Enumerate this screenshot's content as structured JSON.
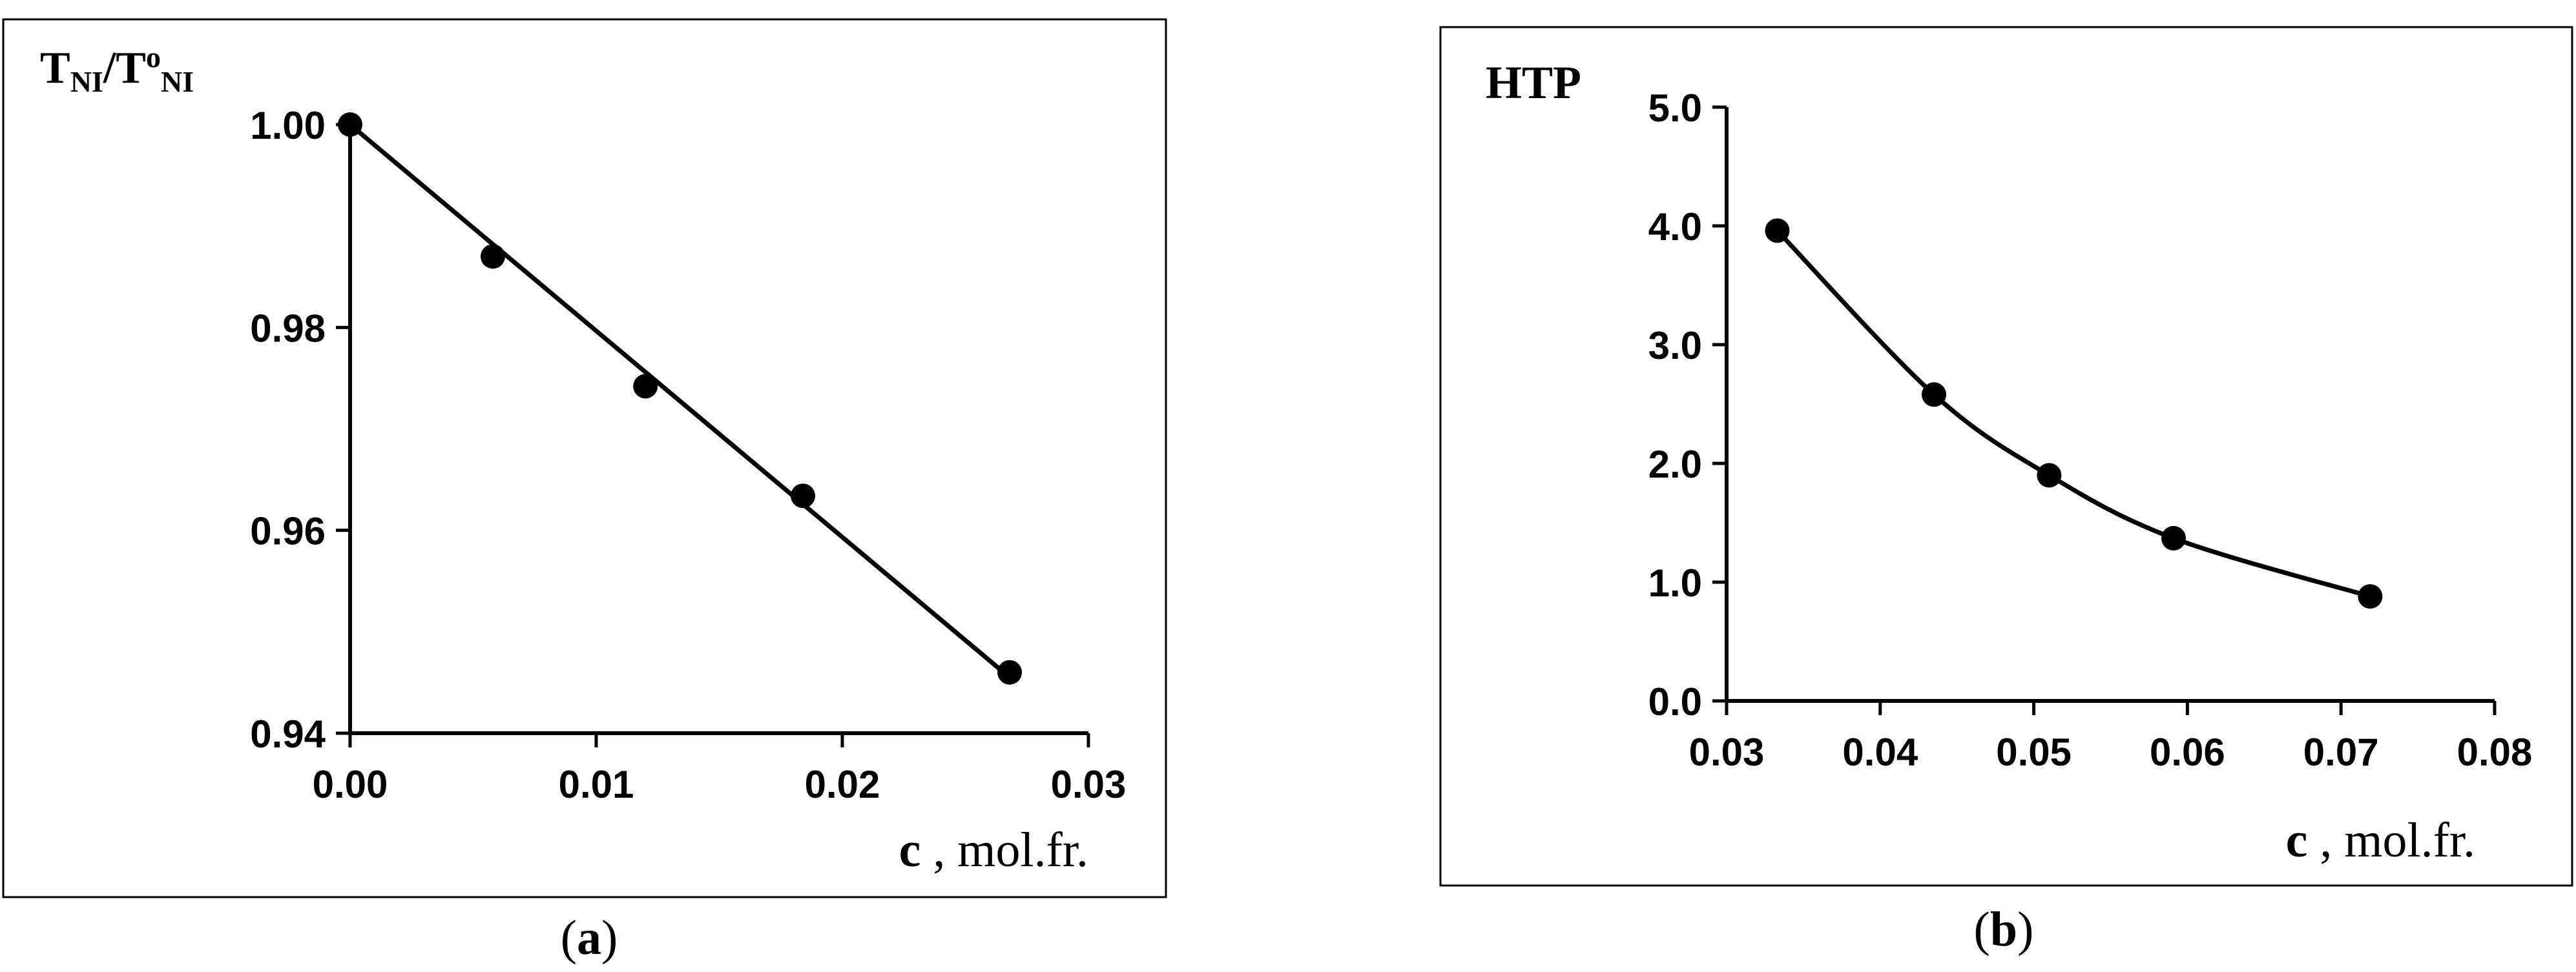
{
  "chart_data": [
    {
      "panel_label": "a",
      "type": "line",
      "ylabel": {
        "main": "T",
        "sub1": "NI",
        "slash": "/T",
        "sup": "o",
        "sub2": "NI"
      },
      "xlabel": {
        "symbol": "c",
        "unit": " , mol.fr."
      },
      "xlim": [
        0.0,
        0.03
      ],
      "ylim": [
        0.94,
        1.0
      ],
      "xticks": [
        "0.00",
        "0.01",
        "0.02",
        "0.03"
      ],
      "yticks": [
        "0.94",
        "0.96",
        "0.98",
        "1.00"
      ],
      "series": [
        {
          "x": [
            0.0,
            0.0058,
            0.012,
            0.0184,
            0.0268
          ],
          "y": [
            1.0,
            0.987,
            0.9742,
            0.9634,
            0.946
          ],
          "fit": {
            "kind": "linear",
            "x": [
              0.0,
              0.0268
            ],
            "y": [
              1.0,
              0.9455
            ]
          }
        }
      ],
      "grid": false
    },
    {
      "panel_label": "b",
      "type": "line",
      "ylabel": {
        "main": "HTP"
      },
      "xlabel": {
        "symbol": "c",
        "unit": " , mol.fr."
      },
      "xlim": [
        0.03,
        0.08
      ],
      "ylim": [
        0.0,
        5.0
      ],
      "xticks": [
        "0.03",
        "0.04",
        "0.05",
        "0.06",
        "0.07",
        "0.08"
      ],
      "yticks": [
        "0.0",
        "1.0",
        "2.0",
        "3.0",
        "4.0",
        "5.0"
      ],
      "series": [
        {
          "x": [
            0.0333,
            0.0435,
            0.051,
            0.0591,
            0.0719
          ],
          "y": [
            3.96,
            2.58,
            1.9,
            1.37,
            0.88
          ],
          "fit": {
            "kind": "smooth"
          }
        }
      ],
      "grid": false
    }
  ]
}
